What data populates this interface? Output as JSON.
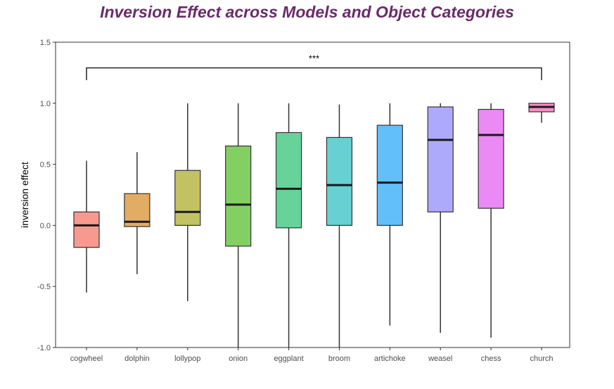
{
  "chart_data": {
    "type": "boxplot",
    "title": "Inversion Effect across Models and Object Categories",
    "xlabel": "",
    "ylabel": "inversion effect",
    "ylim": [
      -1.0,
      1.5
    ],
    "yticks": [
      {
        "value": 1.5,
        "label": "1.5"
      },
      {
        "value": 1.0,
        "label": "1.0"
      },
      {
        "value": 0.5,
        "label": "0.5"
      },
      {
        "value": 0.0,
        "label": "0.0"
      },
      {
        "value": -0.5,
        "label": "-0.5"
      },
      {
        "value": -1.0,
        "label": "-1.0"
      }
    ],
    "grid": false,
    "categories": [
      "cogwheel",
      "dolphin",
      "lollypop",
      "onion",
      "eggplant",
      "broom",
      "artichoke",
      "weasel",
      "chess",
      "church"
    ],
    "boxes": [
      {
        "category": "cogwheel",
        "color": "#f8998f",
        "whisker_low": -0.55,
        "q1": -0.18,
        "median": 0.0,
        "q3": 0.11,
        "whisker_high": 0.53
      },
      {
        "category": "dolphin",
        "color": "#e2ac62",
        "whisker_low": -0.4,
        "q1": -0.01,
        "median": 0.03,
        "q3": 0.26,
        "whisker_high": 0.6
      },
      {
        "category": "lollypop",
        "color": "#c2c262",
        "whisker_low": -0.62,
        "q1": 0.0,
        "median": 0.11,
        "q3": 0.45,
        "whisker_high": 1.0
      },
      {
        "category": "onion",
        "color": "#82cf62",
        "whisker_low": -1.0,
        "q1": -0.17,
        "median": 0.17,
        "q3": 0.65,
        "whisker_high": 1.0
      },
      {
        "category": "eggplant",
        "color": "#67d39a",
        "whisker_low": -1.0,
        "q1": -0.02,
        "median": 0.3,
        "q3": 0.76,
        "whisker_high": 1.0
      },
      {
        "category": "broom",
        "color": "#67d0d2",
        "whisker_low": -1.0,
        "q1": 0.0,
        "median": 0.33,
        "q3": 0.72,
        "whisker_high": 0.99
      },
      {
        "category": "artichoke",
        "color": "#63bff9",
        "whisker_low": -0.82,
        "q1": 0.0,
        "median": 0.35,
        "q3": 0.82,
        "whisker_high": 1.0
      },
      {
        "category": "weasel",
        "color": "#aeaafb",
        "whisker_low": -0.88,
        "q1": 0.11,
        "median": 0.7,
        "q3": 0.97,
        "whisker_high": 1.0
      },
      {
        "category": "chess",
        "color": "#eb89f5",
        "whisker_low": -0.92,
        "q1": 0.14,
        "median": 0.74,
        "q3": 0.95,
        "whisker_high": 1.0
      },
      {
        "category": "church",
        "color": "#f78fc8",
        "whisker_low": 0.84,
        "q1": 0.93,
        "median": 0.97,
        "q3": 1.0,
        "whisker_high": 1.0
      }
    ],
    "annotation": {
      "text": "***",
      "from": "cogwheel",
      "to": "church",
      "y": 1.29
    }
  }
}
